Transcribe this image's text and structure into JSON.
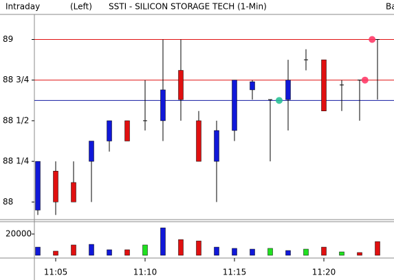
{
  "header": {
    "left": "Intraday",
    "mode": "(Left)",
    "title": "SSTI - SILICON STORAGE TECH  (1-Min)",
    "right": "Ba"
  },
  "chart_data": [
    {
      "type": "candlestick",
      "up_color": "#1018d8",
      "down_color": "#e01010",
      "open": [
        87.95,
        88.19,
        88.12,
        88.25,
        88.375,
        88.5,
        88.5,
        88.5,
        88.81,
        88.5,
        88.25,
        88.44,
        88.69,
        88.63,
        88.63,
        88.875,
        88.875,
        88.72,
        88.75,
        89
      ],
      "high": [
        88.25,
        88.25,
        88.25,
        88.375,
        88.5,
        88.5,
        88.75,
        89,
        89,
        88.56,
        88.5,
        88.75,
        88.75,
        88.63,
        88.875,
        88.94,
        88.875,
        88.75,
        88.75,
        89
      ],
      "low": [
        87.92,
        87.92,
        88,
        88,
        88.31,
        88.375,
        88.44,
        88.375,
        88.5,
        88.25,
        88,
        88.375,
        88.63,
        88.25,
        88.44,
        88.81,
        88.56,
        88.56,
        88.5,
        88.63
      ],
      "close": [
        88.25,
        88,
        88,
        88.375,
        88.5,
        88.375,
        88.5,
        88.69,
        88.63,
        88.25,
        88.44,
        88.75,
        88.74,
        88.63,
        88.75,
        88.875,
        88.56,
        88.72,
        88.75,
        89
      ],
      "ylim": [
        87.9,
        89.15
      ],
      "yticks": [
        89,
        {
          "value": 88.75,
          "label": "88 3/4"
        },
        {
          "value": 88.5,
          "label": "88 1/2"
        },
        {
          "value": 88.25,
          "label": "88 1/4"
        },
        88
      ],
      "reference_lines": [
        {
          "value": 89,
          "color": "#e01010"
        },
        {
          "value": 88.75,
          "color": "#e01010"
        },
        {
          "value": 88.625,
          "color": "#1018a0"
        }
      ],
      "markers": [
        {
          "value": 88.625,
          "color": "#20c090"
        },
        {
          "value": 88.75,
          "color": "#ff3060"
        },
        {
          "value": 89,
          "color": "#ff3060"
        }
      ]
    },
    {
      "type": "bar",
      "categories": [
        null,
        "11:05",
        null,
        null,
        null,
        null,
        "11:10",
        null,
        null,
        null,
        null,
        "11:15",
        null,
        null,
        null,
        null,
        "11:20",
        null,
        null,
        null
      ],
      "values": [
        7700,
        3900,
        9700,
        10300,
        5200,
        5200,
        9700,
        25800,
        14800,
        13500,
        7700,
        6500,
        5800,
        6500,
        4500,
        5800,
        7700,
        3200,
        2600,
        12900
      ],
      "colors": [
        "#1018d8",
        "#e01010",
        "#e01010",
        "#1018d8",
        "#1018d8",
        "#e01010",
        "#20e020",
        "#1018d8",
        "#e01010",
        "#e01010",
        "#1018d8",
        "#1018d8",
        "#1018d8",
        "#20e020",
        "#1018d8",
        "#20e020",
        "#e01010",
        "#20e020",
        "#e01010",
        "#e01010"
      ],
      "ylim": [
        0,
        30000
      ],
      "yticks": [
        20000
      ]
    }
  ]
}
